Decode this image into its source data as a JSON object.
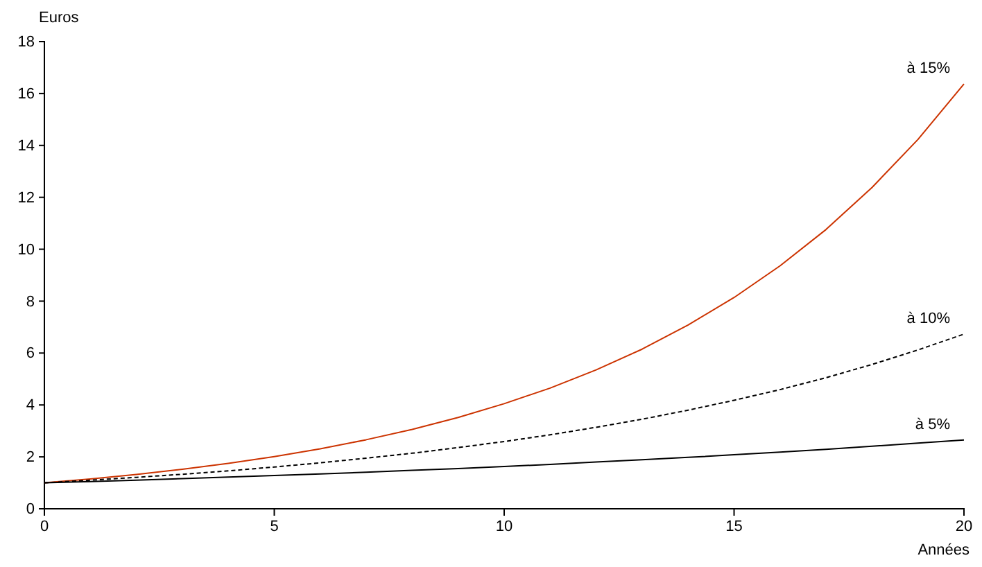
{
  "chart_data": {
    "type": "line",
    "xlabel": "Années",
    "ylabel": "Euros",
    "x": [
      0,
      1,
      2,
      3,
      4,
      5,
      6,
      7,
      8,
      9,
      10,
      11,
      12,
      13,
      14,
      15,
      16,
      17,
      18,
      19,
      20
    ],
    "xlim": [
      0,
      20
    ],
    "xticks": [
      0,
      5,
      10,
      15,
      20
    ],
    "ylim": [
      0,
      18
    ],
    "yticks": [
      0,
      2,
      4,
      6,
      8,
      10,
      12,
      14,
      16,
      18
    ],
    "grid": false,
    "marker": "none",
    "series": [
      {
        "name": "à 15%",
        "color": "#cc3300",
        "line_style": "solid",
        "values": [
          1,
          1.15,
          1.32,
          1.52,
          1.75,
          2.01,
          2.31,
          2.66,
          3.06,
          3.52,
          4.05,
          4.65,
          5.35,
          6.15,
          7.08,
          8.14,
          9.36,
          10.76,
          12.38,
          14.23,
          16.37
        ]
      },
      {
        "name": "à 10%",
        "color": "#000000",
        "line_style": "dashed",
        "values": [
          1,
          1.1,
          1.21,
          1.33,
          1.46,
          1.61,
          1.77,
          1.95,
          2.14,
          2.36,
          2.59,
          2.85,
          3.14,
          3.45,
          3.8,
          4.18,
          4.59,
          5.05,
          5.56,
          6.12,
          6.73
        ]
      },
      {
        "name": "à 5%",
        "color": "#000000",
        "line_style": "solid",
        "values": [
          1,
          1.05,
          1.1,
          1.16,
          1.22,
          1.28,
          1.34,
          1.41,
          1.48,
          1.55,
          1.63,
          1.71,
          1.8,
          1.89,
          1.98,
          2.08,
          2.18,
          2.29,
          2.41,
          2.53,
          2.65
        ]
      }
    ]
  }
}
